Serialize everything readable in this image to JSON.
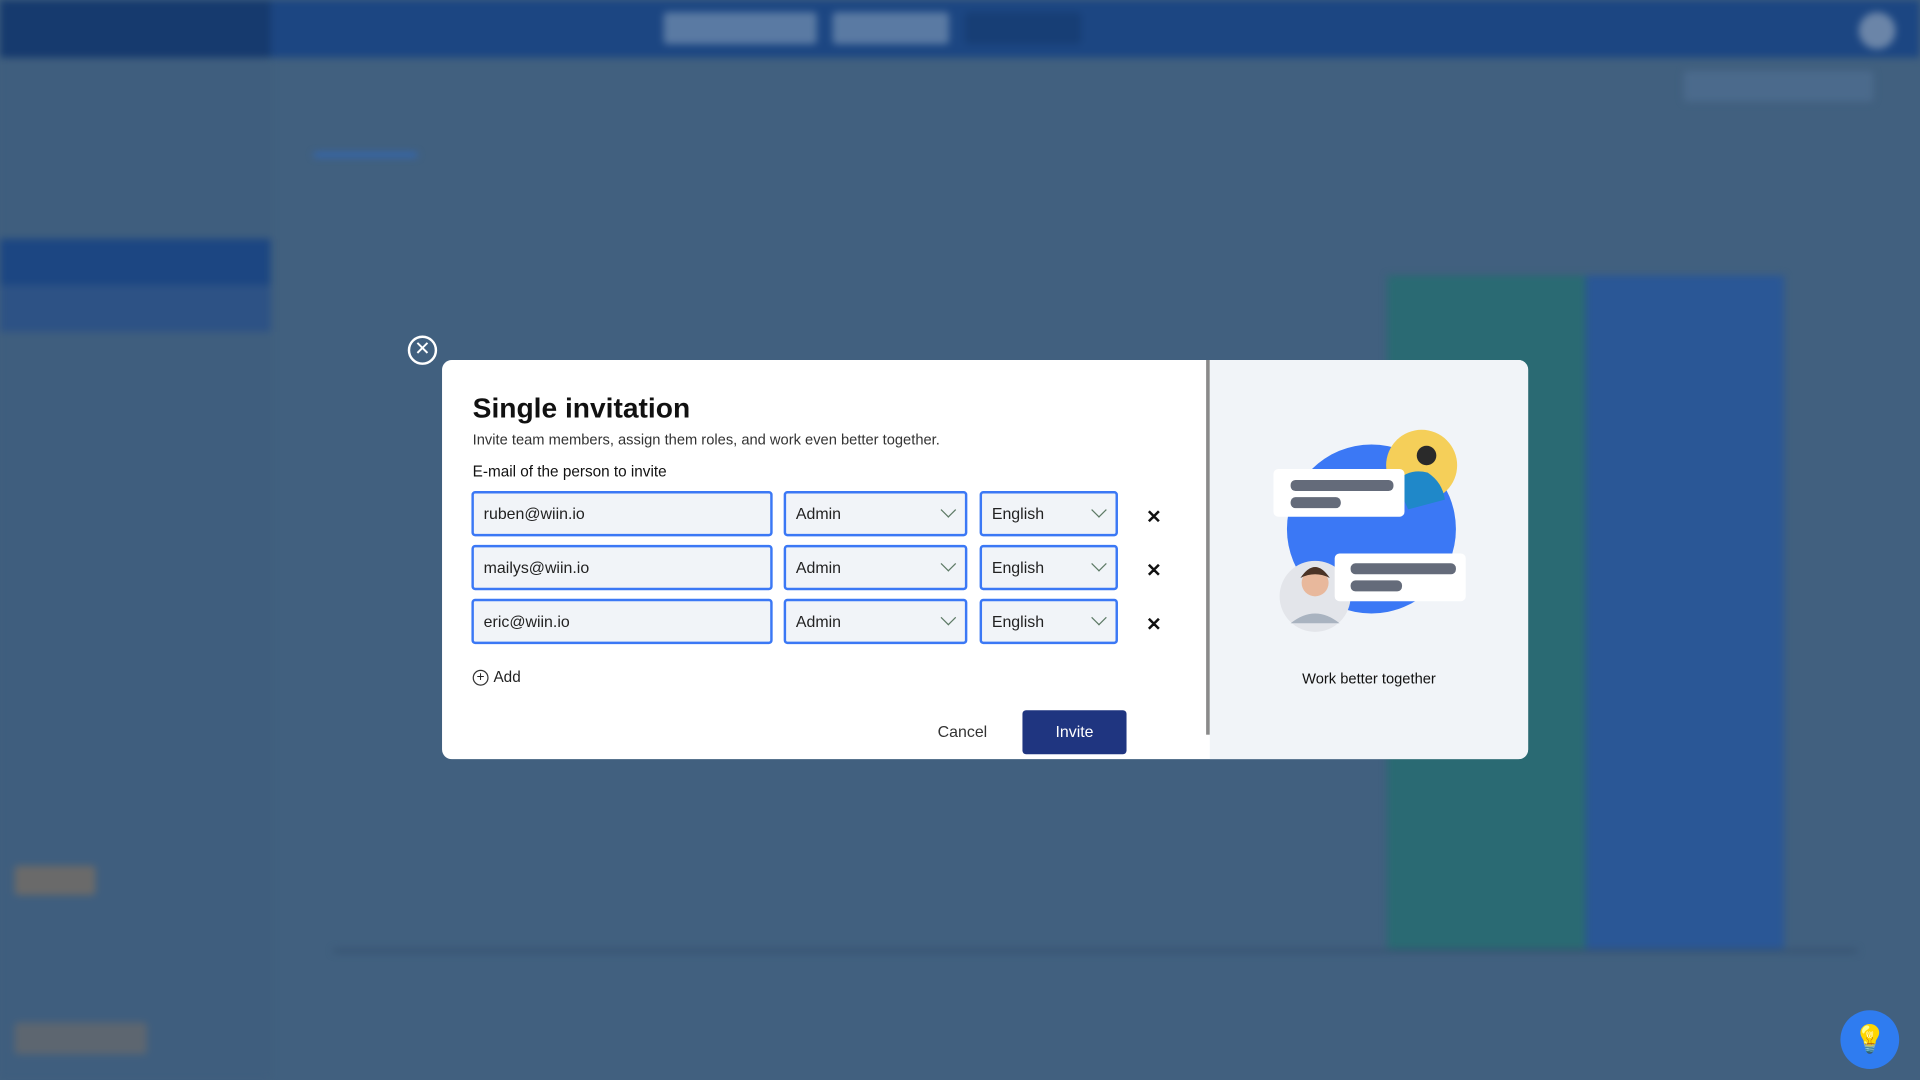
{
  "modal": {
    "title": "Single invitation",
    "subtitle": "Invite team members, assign them roles, and work even better together.",
    "email_label": "E-mail of the person to invite",
    "rows": [
      {
        "email": "ruben@wiin.io",
        "role": "Admin",
        "language": "English"
      },
      {
        "email": "mailys@wiin.io",
        "role": "Admin",
        "language": "English"
      },
      {
        "email": "eric@wiin.io",
        "role": "Admin",
        "language": "English"
      }
    ],
    "add_label": "Add",
    "cancel_label": "Cancel",
    "invite_label": "Invite",
    "illustration_caption": "Work better together"
  },
  "colors": {
    "accent": "#3b78f5",
    "primary_button": "#1f3580",
    "overlay": "#41607f"
  }
}
